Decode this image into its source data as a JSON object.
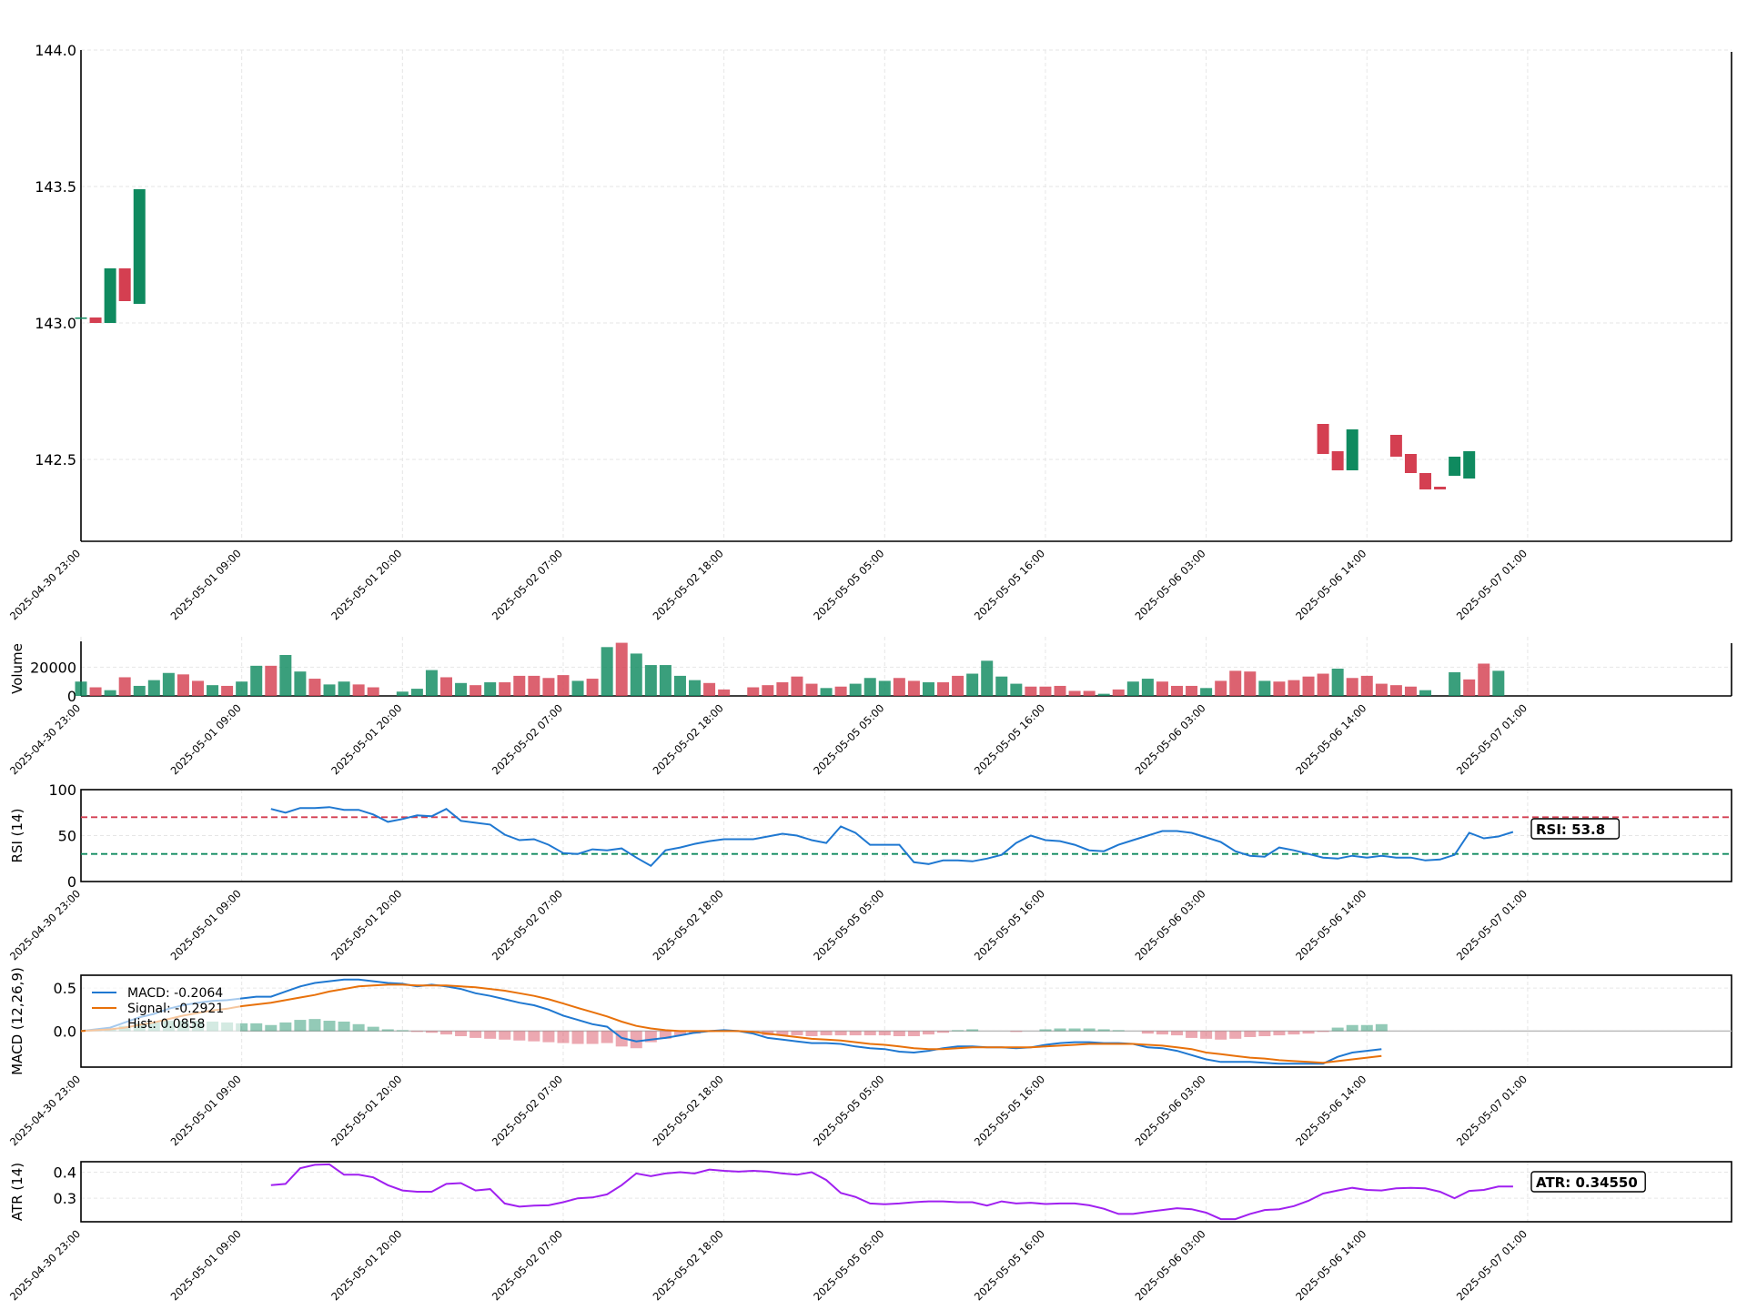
{
  "x_ticks": [
    "2025-04-30 23:00",
    "2025-05-01 09:00",
    "2025-05-01 20:00",
    "2025-05-02 07:00",
    "2025-05-02 18:00",
    "2025-05-05 05:00",
    "2025-05-05 16:00",
    "2025-05-06 03:00",
    "2025-05-06 14:00",
    "2025-05-07 01:00"
  ],
  "colors": {
    "up": "#0f8a5f",
    "down": "#d43f51",
    "grid": "#e6e6e6",
    "macd": "#1f78d1",
    "signal": "#e8710a",
    "rsi": "#1f78d1",
    "atr": "#a020f0",
    "overbought": "#d43f51",
    "oversold": "#0f8a5f"
  },
  "chart_data": [
    {
      "type": "candlestick",
      "title": "",
      "ylabel": "",
      "ylim": [
        142.2,
        144.0
      ],
      "y_ticks": [
        142.5,
        143.0,
        143.5,
        144.0
      ],
      "candles": [
        {
          "i": 0,
          "o": 143.02,
          "h": 143.02,
          "l": 143.02,
          "c": 143.02
        },
        {
          "i": 1,
          "o": 143.02,
          "h": 143.02,
          "l": 143.0,
          "c": 143.0
        },
        {
          "i": 2,
          "o": 143.0,
          "h": 143.2,
          "l": 143.0,
          "c": 143.2
        },
        {
          "i": 3,
          "o": 143.2,
          "h": 143.2,
          "l": 143.08,
          "c": 143.08
        },
        {
          "i": 4,
          "o": 143.07,
          "h": 143.49,
          "l": 143.07,
          "c": 143.49
        },
        {
          "i": 85,
          "o": 142.63,
          "h": 142.63,
          "l": 142.52,
          "c": 142.52
        },
        {
          "i": 86,
          "o": 142.53,
          "h": 142.53,
          "l": 142.46,
          "c": 142.46
        },
        {
          "i": 87,
          "o": 142.46,
          "h": 142.61,
          "l": 142.46,
          "c": 142.61
        },
        {
          "i": 90,
          "o": 142.59,
          "h": 142.59,
          "l": 142.51,
          "c": 142.51
        },
        {
          "i": 91,
          "o": 142.52,
          "h": 142.52,
          "l": 142.45,
          "c": 142.45
        },
        {
          "i": 92,
          "o": 142.45,
          "h": 142.45,
          "l": 142.39,
          "c": 142.39
        },
        {
          "i": 93,
          "o": 142.4,
          "h": 142.4,
          "l": 142.39,
          "c": 142.39
        },
        {
          "i": 94,
          "o": 142.44,
          "h": 142.51,
          "l": 142.44,
          "c": 142.51
        },
        {
          "i": 95,
          "o": 142.43,
          "h": 142.53,
          "l": 142.43,
          "c": 142.53
        }
      ]
    },
    {
      "type": "bar",
      "ylabel": "Volume",
      "ylim": [
        0,
        38000
      ],
      "y_ticks": [
        0,
        20000
      ],
      "start_index": 0,
      "values": [
        10000,
        6000,
        4000,
        13000,
        7000,
        11000,
        16000,
        15000,
        10500,
        7500,
        7000,
        10000,
        21000,
        21000,
        28500,
        17000,
        12000,
        8000,
        10000,
        8000,
        6000,
        0,
        3000,
        5000,
        18000,
        13000,
        9000,
        7500,
        9500,
        9500,
        14000,
        14000,
        12500,
        14500,
        10500,
        12000,
        34000,
        37000,
        29500,
        21500,
        21500,
        14000,
        11000,
        9000,
        4500,
        0,
        6000,
        7500,
        9500,
        13500,
        8500,
        5500,
        6500,
        8500,
        12500,
        10500,
        12500,
        10500,
        9500,
        9500,
        14000,
        15500,
        24500,
        13500,
        8500,
        6500,
        6500,
        7000,
        3500,
        3500,
        1500,
        4500,
        10000,
        12000,
        10000,
        7000,
        7000,
        5500,
        10500,
        17500,
        17000,
        10500,
        10000,
        11000,
        13500,
        15500,
        19000,
        12500,
        14000,
        8500,
        7500,
        6500,
        4000,
        0,
        16500,
        11500,
        22500,
        17500
      ],
      "directions": [
        "u",
        "d",
        "u",
        "d",
        "u",
        "u",
        "u",
        "d",
        "d",
        "u",
        "d",
        "u",
        "u",
        "d",
        "u",
        "u",
        "d",
        "u",
        "u",
        "d",
        "d",
        "u",
        "u",
        "u",
        "u",
        "d",
        "u",
        "d",
        "u",
        "d",
        "d",
        "d",
        "d",
        "d",
        "u",
        "d",
        "u",
        "d",
        "u",
        "u",
        "u",
        "u",
        "u",
        "d",
        "d",
        "u",
        "d",
        "d",
        "d",
        "d",
        "d",
        "u",
        "d",
        "u",
        "u",
        "u",
        "d",
        "d",
        "u",
        "d",
        "d",
        "u",
        "u",
        "u",
        "u",
        "d",
        "d",
        "d",
        "d",
        "d",
        "u",
        "d",
        "u",
        "u",
        "d",
        "d",
        "d",
        "u",
        "d",
        "d",
        "d",
        "u",
        "d",
        "d",
        "d",
        "d",
        "u",
        "d",
        "d",
        "d",
        "d",
        "d",
        "u",
        "u",
        "u",
        "d",
        "d",
        "u"
      ]
    },
    {
      "type": "line",
      "ylabel": "RSI (14)",
      "ylim": [
        0,
        100
      ],
      "y_ticks": [
        0,
        50,
        100
      ],
      "overbought": 70,
      "oversold": 30,
      "start_index": 13,
      "values": [
        79,
        75,
        80,
        80,
        81,
        78,
        78,
        73,
        65,
        68,
        72,
        71,
        79,
        66,
        64,
        62,
        51,
        45,
        46,
        40,
        31,
        30,
        35,
        34,
        36,
        26,
        17,
        34,
        37,
        41,
        44,
        46,
        46,
        46,
        49,
        52,
        50,
        45,
        42,
        60,
        53,
        40,
        40,
        40,
        21,
        19,
        23,
        23,
        22,
        25,
        29,
        42,
        50,
        45,
        44,
        40,
        34,
        33,
        40,
        45,
        50,
        55,
        55,
        53,
        48,
        43,
        33,
        28,
        27,
        37,
        34,
        30,
        26,
        25,
        28,
        26,
        28,
        26,
        26,
        23,
        24,
        29,
        53,
        47,
        49,
        54
      ],
      "badge": "RSI: 53.8"
    },
    {
      "type": "line",
      "ylabel": "MACD (12,26,9)",
      "ylim": [
        -0.42,
        0.65
      ],
      "y_ticks": [
        0.0,
        0.5
      ],
      "legend_position": "top-left",
      "legend": [
        "MACD: -0.2064",
        "Signal: -0.2921",
        "Hist: 0.0858"
      ],
      "series": [
        {
          "values": [
            0.0,
            0.02,
            0.04,
            0.1,
            0.16,
            0.2,
            0.26,
            0.3,
            0.33,
            0.35,
            0.36,
            0.38,
            0.4,
            0.4,
            0.46,
            0.52,
            0.56,
            0.58,
            0.6,
            0.6,
            0.58,
            0.56,
            0.55,
            0.52,
            0.54,
            0.52,
            0.49,
            0.44,
            0.41,
            0.37,
            0.33,
            0.3,
            0.25,
            0.18,
            0.13,
            0.08,
            0.05,
            -0.08,
            -0.12,
            -0.1,
            -0.08,
            -0.05,
            -0.02,
            0.0,
            0.01,
            0.0,
            -0.03,
            -0.08,
            -0.1,
            -0.12,
            -0.14,
            -0.14,
            -0.15,
            -0.18,
            -0.2,
            -0.21,
            -0.24,
            -0.25,
            -0.23,
            -0.2,
            -0.18,
            -0.18,
            -0.19,
            -0.19,
            -0.2,
            -0.19,
            -0.16,
            -0.14,
            -0.13,
            -0.13,
            -0.14,
            -0.14,
            -0.15,
            -0.19,
            -0.2,
            -0.23,
            -0.28,
            -0.33,
            -0.36,
            -0.36,
            -0.36,
            -0.37,
            -0.38,
            -0.38,
            -0.38,
            -0.38,
            -0.3,
            -0.25,
            -0.23,
            -0.21
          ]
        },
        {
          "values": [
            0.0,
            0.01,
            0.02,
            0.04,
            0.07,
            0.1,
            0.14,
            0.18,
            0.21,
            0.24,
            0.26,
            0.29,
            0.31,
            0.33,
            0.36,
            0.39,
            0.42,
            0.46,
            0.49,
            0.52,
            0.53,
            0.54,
            0.54,
            0.53,
            0.53,
            0.53,
            0.52,
            0.51,
            0.49,
            0.47,
            0.44,
            0.41,
            0.37,
            0.32,
            0.27,
            0.22,
            0.17,
            0.11,
            0.06,
            0.03,
            0.01,
            0.0,
            0.0,
            0.0,
            0.0,
            0.0,
            -0.01,
            -0.03,
            -0.05,
            -0.07,
            -0.09,
            -0.1,
            -0.11,
            -0.13,
            -0.15,
            -0.16,
            -0.18,
            -0.2,
            -0.21,
            -0.21,
            -0.2,
            -0.19,
            -0.19,
            -0.19,
            -0.19,
            -0.19,
            -0.18,
            -0.17,
            -0.16,
            -0.15,
            -0.15,
            -0.15,
            -0.15,
            -0.16,
            -0.17,
            -0.19,
            -0.21,
            -0.25,
            -0.27,
            -0.29,
            -0.31,
            -0.32,
            -0.34,
            -0.35,
            -0.36,
            -0.37,
            -0.35,
            -0.33,
            -0.31,
            -0.29
          ]
        }
      ],
      "histogram": [
        0.0,
        0.01,
        0.02,
        0.06,
        0.09,
        0.1,
        0.12,
        0.12,
        0.12,
        0.11,
        0.1,
        0.09,
        0.09,
        0.07,
        0.1,
        0.13,
        0.14,
        0.12,
        0.11,
        0.08,
        0.05,
        0.02,
        0.01,
        -0.01,
        -0.02,
        -0.04,
        -0.06,
        -0.08,
        -0.09,
        -0.1,
        -0.11,
        -0.12,
        -0.13,
        -0.14,
        -0.15,
        -0.15,
        -0.14,
        -0.18,
        -0.2,
        -0.13,
        -0.09,
        -0.05,
        -0.03,
        -0.01,
        0.0,
        0.0,
        -0.02,
        -0.05,
        -0.05,
        -0.05,
        -0.06,
        -0.05,
        -0.05,
        -0.05,
        -0.05,
        -0.05,
        -0.06,
        -0.06,
        -0.04,
        -0.02,
        0.01,
        0.02,
        0.0,
        0.0,
        -0.01,
        0.0,
        0.02,
        0.03,
        0.03,
        0.03,
        0.02,
        0.01,
        0.0,
        -0.03,
        -0.04,
        -0.05,
        -0.08,
        -0.09,
        -0.1,
        -0.09,
        -0.07,
        -0.06,
        -0.05,
        -0.04,
        -0.03,
        -0.01,
        0.04,
        0.07,
        0.07,
        0.08
      ]
    },
    {
      "type": "line",
      "ylabel": "ATR (14)",
      "ylim": [
        0.21,
        0.44
      ],
      "y_ticks": [
        0.3,
        0.4
      ],
      "start_index": 13,
      "values": [
        0.35,
        0.355,
        0.415,
        0.428,
        0.43,
        0.39,
        0.39,
        0.38,
        0.35,
        0.33,
        0.325,
        0.325,
        0.355,
        0.358,
        0.33,
        0.335,
        0.28,
        0.268,
        0.272,
        0.273,
        0.285,
        0.3,
        0.303,
        0.315,
        0.35,
        0.395,
        0.385,
        0.395,
        0.4,
        0.395,
        0.41,
        0.405,
        0.402,
        0.405,
        0.402,
        0.395,
        0.39,
        0.4,
        0.37,
        0.32,
        0.305,
        0.28,
        0.277,
        0.28,
        0.285,
        0.288,
        0.288,
        0.285,
        0.285,
        0.272,
        0.288,
        0.28,
        0.283,
        0.278,
        0.28,
        0.28,
        0.273,
        0.26,
        0.24,
        0.24,
        0.248,
        0.255,
        0.262,
        0.258,
        0.245,
        0.22,
        0.22,
        0.24,
        0.255,
        0.258,
        0.27,
        0.29,
        0.318,
        0.33,
        0.34,
        0.332,
        0.33,
        0.338,
        0.34,
        0.338,
        0.325,
        0.3,
        0.328,
        0.332,
        0.345,
        0.345
      ],
      "badge": "ATR: 0.34550"
    }
  ]
}
